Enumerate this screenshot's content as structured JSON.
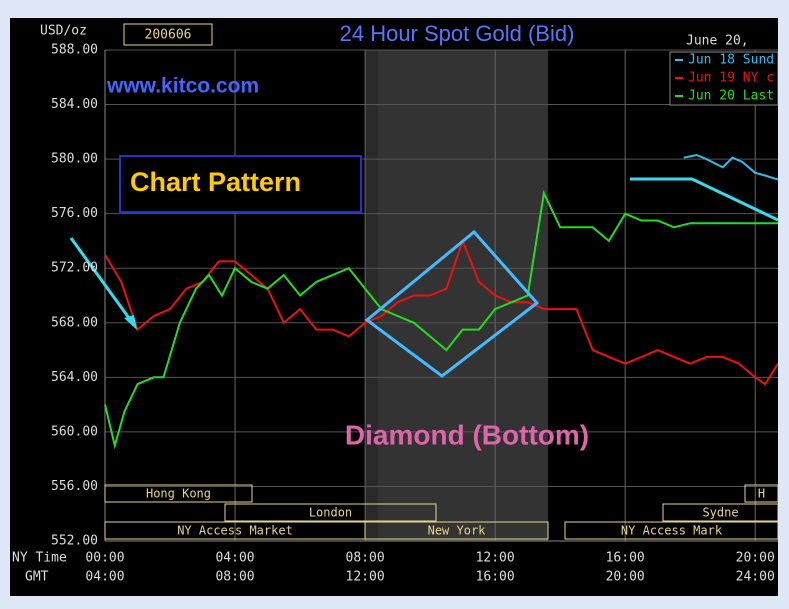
{
  "chart_data": {
    "type": "line",
    "title": "24 Hour Spot Gold (Bid)",
    "date_box": "200606",
    "date_label": "June 20, ",
    "unit_label": "USD/oz",
    "site": "www.kitco.com",
    "pattern_label": "Chart Pattern",
    "annotation": "Diamond (Bottom)",
    "x_row_label": "NY Time",
    "x2_row_label": "GMT",
    "xlim": [
      0,
      20.7
    ],
    "xticks": [
      {
        "value": 0,
        "label": "00:00"
      },
      {
        "value": 4,
        "label": "04:00"
      },
      {
        "value": 8,
        "label": "08:00"
      },
      {
        "value": 12,
        "label": "12:00"
      },
      {
        "value": 16,
        "label": "16:00"
      },
      {
        "value": 20,
        "label": "20:00"
      }
    ],
    "x2ticks": [
      "04:00",
      "08:00",
      "12:00",
      "16:00",
      "20:00",
      "24:00"
    ],
    "ylim": [
      552,
      588
    ],
    "yticks": [
      {
        "value": 552,
        "label": "552.00"
      },
      {
        "value": 556,
        "label": "556.00"
      },
      {
        "value": 560,
        "label": "560.00"
      },
      {
        "value": 564,
        "label": "564.00"
      },
      {
        "value": 568,
        "label": "568.00"
      },
      {
        "value": 572,
        "label": "572.00"
      },
      {
        "value": 576,
        "label": "576.00"
      },
      {
        "value": 580,
        "label": "580.00"
      },
      {
        "value": 584,
        "label": "584.00"
      },
      {
        "value": 588,
        "label": "588.00"
      }
    ],
    "grid": true,
    "sessions": [
      "Hong Kong",
      "London",
      "NY Access Market",
      "New York",
      "NY Access Mark",
      "Sydne",
      "H"
    ],
    "series": [
      {
        "name": "Jun 18 Sund",
        "color": "#33bbee",
        "x": [
          17.8,
          18.2,
          18.5,
          19,
          19.3,
          19.6,
          20,
          20.3,
          20.7
        ],
        "values": [
          580.1,
          580.3,
          580.0,
          579.4,
          580.1,
          579.8,
          579.0,
          578.8,
          578.5
        ]
      },
      {
        "name": "Jun 19 NY c",
        "color": "#ee1111",
        "x": [
          0,
          0.5,
          1,
          1.5,
          2,
          2.5,
          3,
          3.5,
          4,
          4.5,
          5,
          5.5,
          6,
          6.5,
          7,
          7.5,
          8,
          8.5,
          9,
          9.5,
          10,
          10.5,
          11,
          11.5,
          12,
          12.5,
          13,
          13.5,
          14,
          14.5,
          15,
          15.5,
          16,
          16.5,
          17,
          17.5,
          18,
          18.5,
          19,
          19.5,
          20,
          20.3,
          20.7
        ],
        "values": [
          573.0,
          571.0,
          567.5,
          568.5,
          569.0,
          570.5,
          571.0,
          572.5,
          572.5,
          571.5,
          570.5,
          568.0,
          569.0,
          567.5,
          567.5,
          567.0,
          568.0,
          568.5,
          569.5,
          570.0,
          570.0,
          570.5,
          574.0,
          571.0,
          570.0,
          569.5,
          569.5,
          569.0,
          569.0,
          569.0,
          566.0,
          565.5,
          565.0,
          565.5,
          566.0,
          565.5,
          565.0,
          565.5,
          565.5,
          565.0,
          564.0,
          563.5,
          565.0
        ]
      },
      {
        "name": "Jun 20 Last",
        "color": "#22dd22",
        "x": [
          0,
          0.3,
          0.6,
          1,
          1.5,
          1.8,
          2.3,
          2.8,
          3.2,
          3.6,
          4,
          4.5,
          5,
          5.5,
          6,
          6.5,
          7,
          7.5,
          8,
          8.5,
          9,
          9.5,
          10,
          10.5,
          11,
          11.5,
          12,
          12.5,
          13,
          13.3,
          13.5,
          14,
          14.5,
          15,
          15.5,
          16,
          16.5,
          17,
          17.5,
          18,
          19,
          20,
          20.7
        ],
        "values": [
          562.0,
          559.0,
          561.5,
          563.5,
          564.0,
          564.0,
          568.0,
          570.5,
          571.5,
          570.0,
          572.0,
          571.0,
          570.5,
          571.5,
          570.0,
          571.0,
          571.5,
          572.0,
          570.5,
          569.0,
          568.5,
          568.0,
          567.0,
          566.0,
          567.5,
          567.5,
          569.0,
          569.5,
          570.0,
          574.5,
          577.5,
          575.0,
          575.0,
          575.0,
          574.0,
          576.0,
          575.5,
          575.5,
          575.0,
          575.3,
          575.3,
          575.3,
          575.3
        ]
      }
    ]
  }
}
